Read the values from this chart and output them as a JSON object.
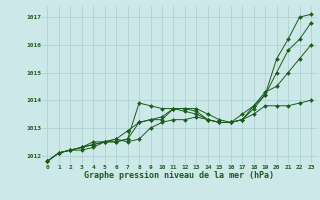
{
  "xlabel": "Graphe pression niveau de la mer (hPa)",
  "xlim": [
    -0.5,
    23.5
  ],
  "ylim": [
    1011.7,
    1017.4
  ],
  "yticks": [
    1012,
    1013,
    1014,
    1015,
    1016,
    1017
  ],
  "xticks": [
    0,
    1,
    2,
    3,
    4,
    5,
    6,
    7,
    8,
    9,
    10,
    11,
    12,
    13,
    14,
    15,
    16,
    17,
    18,
    19,
    20,
    21,
    22,
    23
  ],
  "bg_color": "#cce8e8",
  "grid_color": "#aacece",
  "line_color": "#1a5c1a",
  "series": [
    [
      1011.8,
      1012.1,
      1012.2,
      1012.2,
      1012.3,
      1012.5,
      1012.5,
      1012.6,
      1013.9,
      1013.8,
      1013.7,
      1013.7,
      1013.6,
      1013.5,
      1013.3,
      1013.2,
      1013.2,
      1013.3,
      1013.8,
      1014.2,
      1015.5,
      1016.2,
      1017.0,
      1017.1
    ],
    [
      1011.8,
      1012.1,
      1012.2,
      1012.3,
      1012.4,
      1012.5,
      1012.5,
      1012.6,
      1013.2,
      1013.3,
      1013.3,
      1013.7,
      1013.7,
      1013.7,
      1013.5,
      1013.3,
      1013.2,
      1013.3,
      1013.7,
      1014.2,
      1015.0,
      1015.8,
      1016.2,
      1016.8
    ],
    [
      1011.8,
      1012.1,
      1012.2,
      1012.3,
      1012.5,
      1012.5,
      1012.6,
      1012.9,
      1013.2,
      1013.3,
      1013.4,
      1013.7,
      1013.7,
      1013.6,
      1013.3,
      1013.2,
      1013.2,
      1013.5,
      1013.8,
      1014.3,
      1014.5,
      1015.0,
      1015.5,
      1016.0
    ],
    [
      1011.8,
      1012.1,
      1012.2,
      1012.3,
      1012.4,
      1012.5,
      1012.6,
      1012.5,
      1012.6,
      1013.0,
      1013.2,
      1013.3,
      1013.3,
      1013.4,
      1013.3,
      1013.2,
      1013.2,
      1013.3,
      1013.5,
      1013.8,
      1013.8,
      1013.8,
      1013.9,
      1014.0
    ]
  ]
}
